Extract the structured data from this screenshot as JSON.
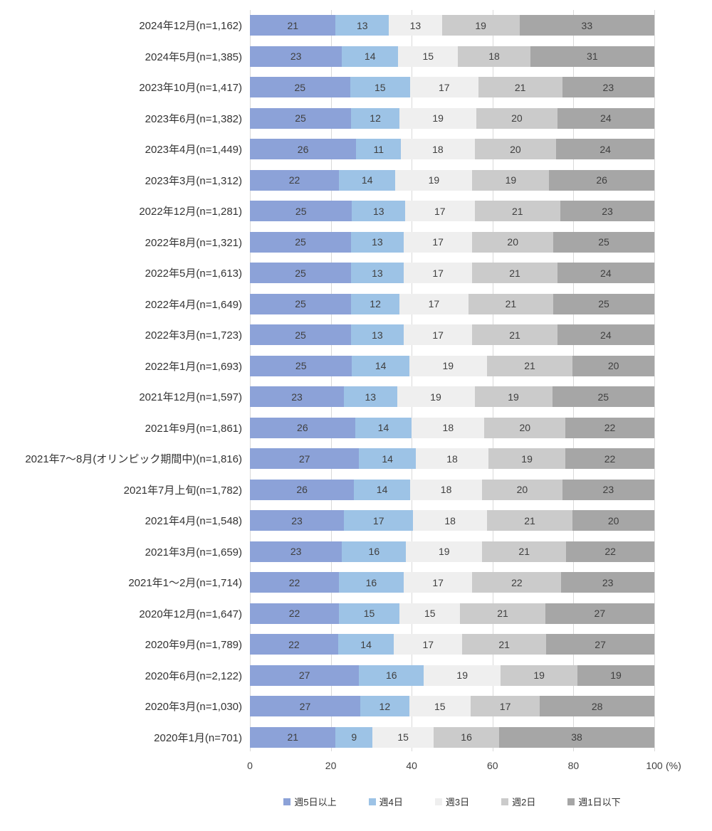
{
  "chart_data": {
    "type": "bar",
    "variant": "horizontal-stacked-percentage",
    "title": "",
    "categories": [
      "2024年12月(n=1,162)",
      "2024年5月(n=1,385)",
      "2023年10月(n=1,417)",
      "2023年6月(n=1,382)",
      "2023年4月(n=1,449)",
      "2023年3月(n=1,312)",
      "2022年12月(n=1,281)",
      "2022年8月(n=1,321)",
      "2022年5月(n=1,613)",
      "2022年4月(n=1,649)",
      "2022年3月(n=1,723)",
      "2022年1月(n=1,693)",
      "2021年12月(n=1,597)",
      "2021年9月(n=1,861)",
      "2021年7〜8月(オリンピック期間中)(n=1,816)",
      "2021年7月上旬(n=1,782)",
      "2021年4月(n=1,548)",
      "2021年3月(n=1,659)",
      "2021年1〜2月(n=1,714)",
      "2020年12月(n=1,647)",
      "2020年9月(n=1,789)",
      "2020年6月(n=2,122)",
      "2020年3月(n=1,030)",
      "2020年1月(n=701)"
    ],
    "series": [
      {
        "name": "週5日以上",
        "color": "#8ca2d8",
        "values": [
          21,
          23,
          25,
          25,
          26,
          22,
          25,
          25,
          25,
          25,
          25,
          25,
          23,
          26,
          27,
          26,
          23,
          23,
          22,
          22,
          22,
          27,
          27,
          21
        ]
      },
      {
        "name": "週4日",
        "color": "#9dc3e6",
        "values": [
          13,
          14,
          15,
          12,
          11,
          14,
          13,
          13,
          13,
          12,
          13,
          14,
          13,
          14,
          14,
          14,
          17,
          16,
          16,
          15,
          14,
          16,
          12,
          9
        ]
      },
      {
        "name": "週3日",
        "color": "#efefef",
        "values": [
          13,
          15,
          17,
          19,
          18,
          19,
          17,
          17,
          17,
          17,
          17,
          19,
          19,
          18,
          18,
          18,
          18,
          19,
          17,
          15,
          17,
          19,
          15,
          15
        ]
      },
      {
        "name": "週2日",
        "color": "#cbcbcb",
        "values": [
          19,
          18,
          21,
          20,
          20,
          19,
          21,
          20,
          21,
          21,
          21,
          21,
          19,
          20,
          19,
          20,
          21,
          21,
          22,
          21,
          21,
          19,
          17,
          16
        ]
      },
      {
        "name": "週1日以下",
        "color": "#a6a6a6",
        "values": [
          33,
          31,
          23,
          24,
          24,
          26,
          23,
          25,
          24,
          25,
          24,
          20,
          25,
          22,
          22,
          23,
          20,
          22,
          23,
          27,
          27,
          19,
          28,
          38
        ]
      }
    ],
    "x_axis": {
      "ticks": [
        0,
        20,
        40,
        60,
        80,
        100
      ],
      "unit": "(%)",
      "lim": [
        0,
        100
      ]
    },
    "grid": true,
    "gridline_color": "#d9d9d9",
    "value_label_color": "#3f3f3f",
    "legend_position": "bottom"
  }
}
